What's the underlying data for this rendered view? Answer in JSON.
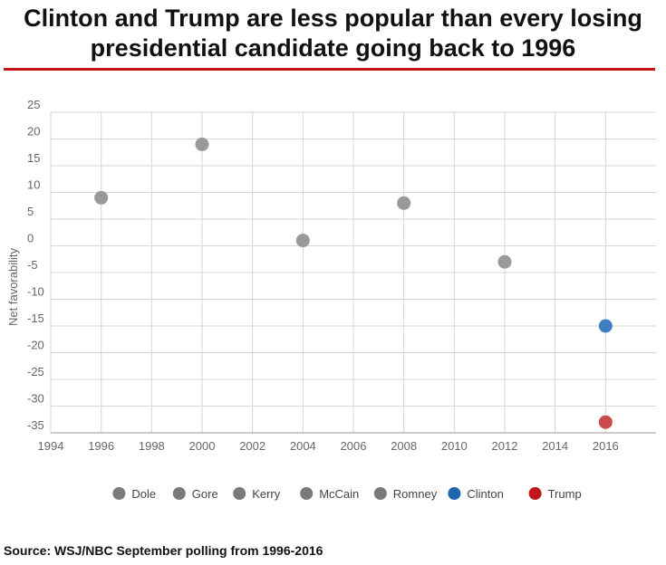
{
  "title_lines": [
    "Clinton and Trump are less popular than every losing",
    "presidential candidate going back to 1996"
  ],
  "source": "Source: WSJ/NBC September polling from 1996-2016",
  "chart_data": {
    "type": "scatter",
    "title": "",
    "xlabel": "",
    "ylabel": "Net favorability",
    "xlim": [
      1994,
      2018
    ],
    "ylim": [
      -35,
      25
    ],
    "x_ticks": [
      1994,
      1996,
      1998,
      2000,
      2002,
      2004,
      2006,
      2008,
      2010,
      2012,
      2014,
      2016
    ],
    "y_ticks": [
      25,
      20,
      15,
      10,
      5,
      0,
      -5,
      -10,
      -15,
      -20,
      -25,
      -30,
      -35
    ],
    "grid": true,
    "legend_position": "bottom",
    "series": [
      {
        "name": "Dole",
        "color": "#999999",
        "x": [
          1996
        ],
        "y": [
          9
        ]
      },
      {
        "name": "Gore",
        "color": "#999999",
        "x": [
          2000
        ],
        "y": [
          19
        ]
      },
      {
        "name": "Kerry",
        "color": "#999999",
        "x": [
          2004
        ],
        "y": [
          1
        ]
      },
      {
        "name": "McCain",
        "color": "#999999",
        "x": [
          2008
        ],
        "y": [
          8
        ]
      },
      {
        "name": "Romney",
        "color": "#999999",
        "x": [
          2012
        ],
        "y": [
          -3
        ]
      },
      {
        "name": "Clinton",
        "color": "#3d7fc1",
        "x": [
          2016
        ],
        "y": [
          -15
        ]
      },
      {
        "name": "Trump",
        "color": "#c94a4a",
        "x": [
          2016
        ],
        "y": [
          -33
        ]
      }
    ],
    "legend_colors": {
      "Dole": "#7a7a7a",
      "Gore": "#7a7a7a",
      "Kerry": "#7a7a7a",
      "McCain": "#7a7a7a",
      "Romney": "#7a7a7a",
      "Clinton": "#1f66b0",
      "Trump": "#c0161a"
    }
  }
}
